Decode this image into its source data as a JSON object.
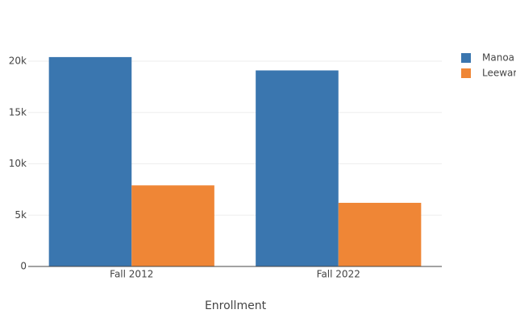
{
  "chart_data": {
    "type": "bar",
    "x_label": "Enrollment",
    "categories": [
      "Fall 2012",
      "Fall 2022"
    ],
    "series": [
      {
        "name": "Manoa",
        "color": "#3a76af",
        "values": [
          20400,
          19100
        ]
      },
      {
        "name": "Leewar",
        "color": "#ef8636",
        "values": [
          7900,
          6200
        ]
      }
    ],
    "ylim": [
      0,
      21500
    ],
    "yticks": [
      0,
      {
        "value": 5000,
        "label": "5k"
      },
      {
        "value": 10000,
        "label": "10k"
      },
      {
        "value": 15000,
        "label": "15k"
      },
      {
        "value": 20000,
        "label": "20k"
      }
    ],
    "grid": true,
    "legend": "right"
  }
}
